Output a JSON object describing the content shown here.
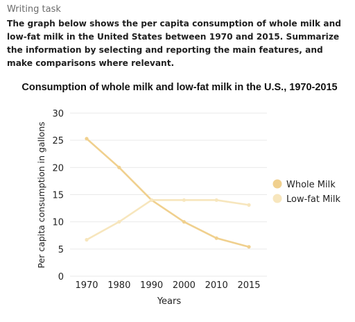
{
  "task": {
    "label": "Writing task",
    "prompt": "The graph below shows the per capita consumption of whole milk and low-fat milk in the United States between 1970 and 2015.  Summarize the information by selecting and reporting the main features, and make comparisons where relevant."
  },
  "chart_data": {
    "type": "line",
    "title": "Consumption of whole milk and low-fat milk in the U.S., 1970-2015",
    "xlabel": "Years",
    "ylabel": "Per capita consumption in gallons",
    "categories": [
      "1970",
      "1980",
      "1990",
      "2000",
      "2010",
      "2015"
    ],
    "series": [
      {
        "name": "Whole Milk",
        "values": [
          25.3,
          20,
          14,
          10,
          7,
          5.4
        ],
        "color": "#f0d08e"
      },
      {
        "name": "Low-fat Milk",
        "values": [
          6.7,
          10,
          14,
          14,
          14,
          13.1
        ],
        "color": "#f7e6bd"
      }
    ],
    "ylim": [
      0,
      30
    ],
    "yticks": [
      "0",
      "5",
      "10",
      "15",
      "20",
      "25",
      "30"
    ],
    "grid": true,
    "legend": "right"
  }
}
